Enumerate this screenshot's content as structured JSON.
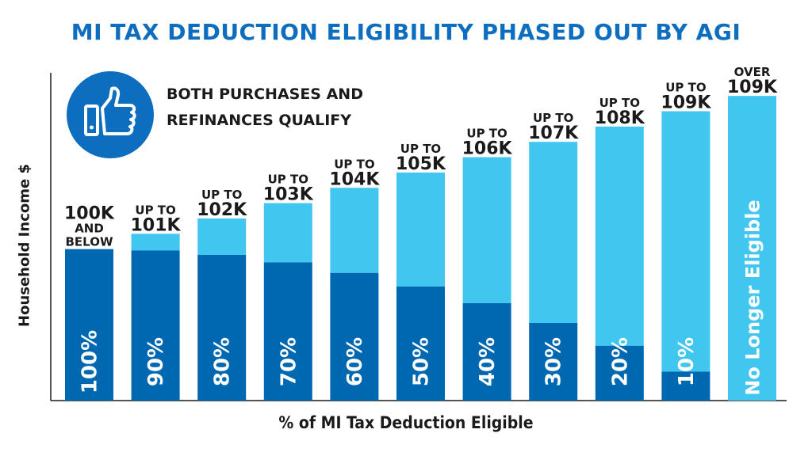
{
  "title": "MI TAX DEDUCTION ELIGIBILITY PHASED OUT BY AGI",
  "callout": {
    "icon": "thumbs-up-icon",
    "line1": "BOTH PURCHASES AND",
    "line2": "REFINANCES QUALIFY"
  },
  "colors": {
    "title": "#0d6ec0",
    "dark_bar": "#0067b1",
    "light_bar": "#41c6ef",
    "text": "#1a1a1a",
    "bar_text": "#ffffff"
  },
  "chart_data": {
    "type": "bar",
    "stacked": true,
    "xlabel": "% of MI Tax Deduction Eligible",
    "ylabel": "Household Income $",
    "grid": false,
    "ylim": [
      0,
      100
    ],
    "categories": [
      "100%",
      "90%",
      "80%",
      "70%",
      "60%",
      "50%",
      "40%",
      "30%",
      "20%",
      "10%",
      "No Longer Eligible"
    ],
    "top_labels": [
      [
        "100K",
        "AND",
        "BELOW"
      ],
      [
        "UP TO",
        "101K"
      ],
      [
        "UP TO",
        "102K"
      ],
      [
        "UP TO",
        "103K"
      ],
      [
        "UP TO",
        "104K"
      ],
      [
        "UP TO",
        "105K"
      ],
      [
        "UP TO",
        "106K"
      ],
      [
        "UP TO",
        "107K"
      ],
      [
        "UP TO",
        "108K"
      ],
      [
        "UP TO",
        "109K"
      ],
      [
        "OVER",
        "109K"
      ]
    ],
    "series": [
      {
        "values": [
          100,
          90,
          80,
          70,
          60,
          50,
          40,
          30,
          20,
          10,
          0
        ]
      },
      {
        "values": [
          0,
          10,
          20,
          30,
          40,
          50,
          60,
          70,
          80,
          90,
          100
        ]
      }
    ],
    "bar_heights_relative": [
      0.445,
      0.49,
      0.535,
      0.58,
      0.625,
      0.67,
      0.715,
      0.76,
      0.805,
      0.85,
      0.895
    ]
  }
}
